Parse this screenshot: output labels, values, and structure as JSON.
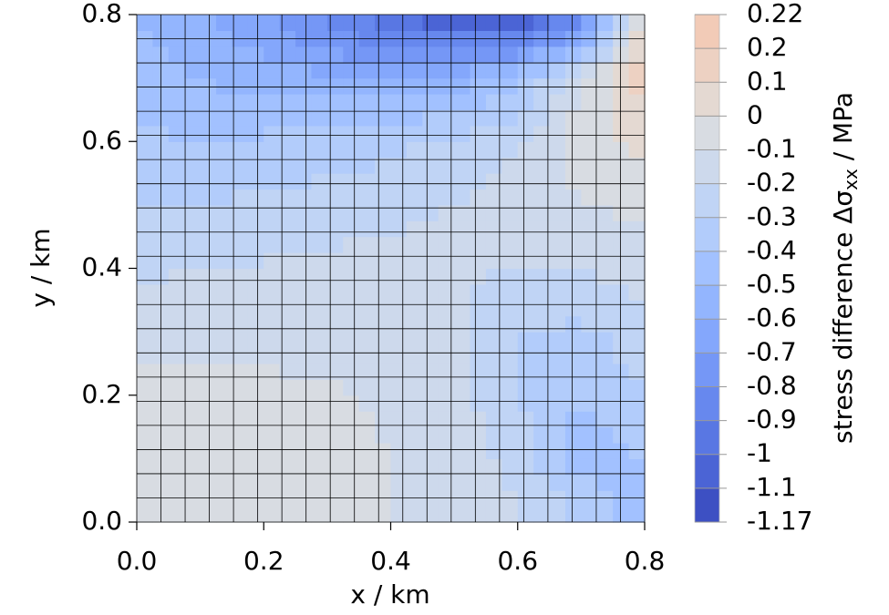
{
  "chart_data": {
    "type": "contour",
    "xlabel": "x / km",
    "ylabel": "y / km",
    "colorbar_label": [
      "stress difference Δσ",
      "xx",
      " / MPa"
    ],
    "x": [
      0,
      0.1,
      0.2,
      0.3,
      0.4,
      0.5,
      0.6,
      0.7,
      0.8
    ],
    "y": [
      0,
      0.1,
      0.2,
      0.3,
      0.4,
      0.5,
      0.6,
      0.7,
      0.8
    ],
    "z": [
      [
        -0.05,
        -0.02,
        -0.05,
        -0.08,
        -0.1,
        -0.12,
        -0.18,
        -0.3,
        -0.5
      ],
      [
        -0.05,
        -0.06,
        -0.07,
        -0.08,
        -0.1,
        -0.13,
        -0.25,
        -0.45,
        -0.4
      ],
      [
        -0.06,
        -0.07,
        -0.08,
        -0.09,
        -0.11,
        -0.15,
        -0.3,
        -0.4,
        -0.3
      ],
      [
        -0.15,
        -0.14,
        -0.13,
        -0.13,
        -0.14,
        -0.18,
        -0.3,
        -0.32,
        -0.25
      ],
      [
        -0.22,
        -0.2,
        -0.19,
        -0.18,
        -0.17,
        -0.18,
        -0.2,
        -0.2,
        -0.15
      ],
      [
        -0.3,
        -0.3,
        -0.28,
        -0.25,
        -0.22,
        -0.2,
        -0.15,
        -0.1,
        -0.08
      ],
      [
        -0.38,
        -0.4,
        -0.38,
        -0.36,
        -0.33,
        -0.28,
        -0.2,
        -0.05,
        0.05
      ],
      [
        -0.45,
        -0.5,
        -0.55,
        -0.58,
        -0.6,
        -0.55,
        -0.45,
        -0.1,
        0.15
      ],
      [
        -0.5,
        -0.6,
        -0.7,
        -0.85,
        -1.0,
        -1.1,
        -1.15,
        -0.9,
        0.1
      ]
    ],
    "xlim": [
      0,
      0.8
    ],
    "ylim": [
      0,
      0.8
    ],
    "xticks": [
      {
        "value": 0,
        "label": "0.0"
      },
      0.2,
      0.4,
      0.6,
      0.8
    ],
    "yticks": [
      {
        "value": 0,
        "label": "0.0"
      },
      0.2,
      0.4,
      0.6,
      0.8
    ],
    "levels": [
      -1.17,
      -1.1,
      -1,
      -0.9,
      -0.8,
      -0.7,
      -0.6,
      -0.5,
      -0.4,
      -0.3,
      -0.2,
      -0.1,
      0,
      0.1,
      0.2,
      0.22
    ],
    "colors": [
      "#3d50c3",
      "#4b64d5",
      "#5977e3",
      "#6788ee",
      "#7597f6",
      "#84a7fc",
      "#93b5fe",
      "#a2c1ff",
      "#b2ccfb",
      "#c0d4f5",
      "#cdd9ec",
      "#d8dce2",
      "#e4d9d2",
      "#edd1c2",
      "#f2cbb7"
    ],
    "mesh": true
  }
}
